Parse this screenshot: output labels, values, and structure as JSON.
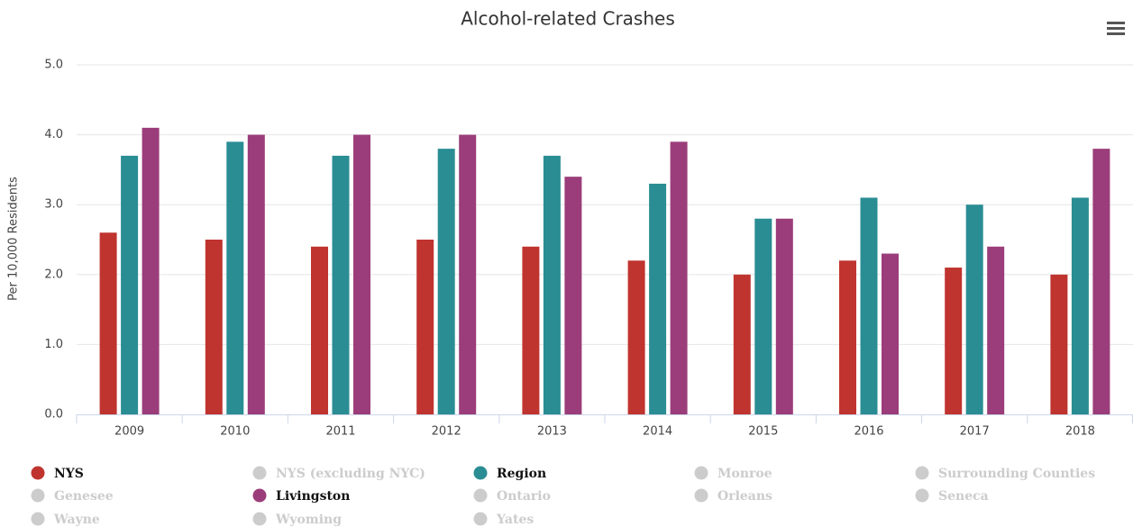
{
  "chart_data": {
    "type": "bar",
    "title": "Alcohol-related Crashes",
    "y_axis_label": "Per 10,000 Residents",
    "categories": [
      "2009",
      "2010",
      "2011",
      "2012",
      "2013",
      "2014",
      "2015",
      "2016",
      "2017",
      "2018"
    ],
    "series": [
      {
        "name": "NYS",
        "color": "#c0342f",
        "values": [
          2.6,
          2.5,
          2.4,
          2.5,
          2.4,
          2.2,
          2.0,
          2.2,
          2.1,
          2.0
        ]
      },
      {
        "name": "NYS (excluding NYC)",
        "color": "#cccccc",
        "visible": false
      },
      {
        "name": "Region",
        "color": "#2a8d94",
        "values": [
          3.7,
          3.9,
          3.7,
          3.8,
          3.7,
          3.3,
          2.8,
          3.1,
          3.0,
          3.1
        ]
      },
      {
        "name": "Monroe",
        "color": "#cccccc",
        "visible": false
      },
      {
        "name": "Surrounding Counties",
        "color": "#cccccc",
        "visible": false
      },
      {
        "name": "Genesee",
        "color": "#cccccc",
        "visible": false
      },
      {
        "name": "Livingston",
        "color": "#9b3d7a",
        "values": [
          4.1,
          4.0,
          4.0,
          4.0,
          3.4,
          3.9,
          2.8,
          2.3,
          2.4,
          3.8
        ]
      },
      {
        "name": "Ontario",
        "color": "#cccccc",
        "visible": false
      },
      {
        "name": "Orleans",
        "color": "#cccccc",
        "visible": false
      },
      {
        "name": "Seneca",
        "color": "#cccccc",
        "visible": false
      },
      {
        "name": "Wayne",
        "color": "#cccccc",
        "visible": false
      },
      {
        "name": "Wyoming",
        "color": "#cccccc",
        "visible": false
      },
      {
        "name": "Yates",
        "color": "#cccccc",
        "visible": false
      }
    ],
    "ylim": [
      0,
      5
    ],
    "yticks": [
      {
        "value": 0,
        "label": "0.0"
      },
      {
        "value": 1,
        "label": "1.0"
      },
      {
        "value": 2,
        "label": "2.0"
      },
      {
        "value": 3,
        "label": "3.0"
      },
      {
        "value": 4,
        "label": "4.0"
      },
      {
        "value": 5,
        "label": "5.0"
      }
    ],
    "grid": true,
    "legend": "bottom"
  }
}
